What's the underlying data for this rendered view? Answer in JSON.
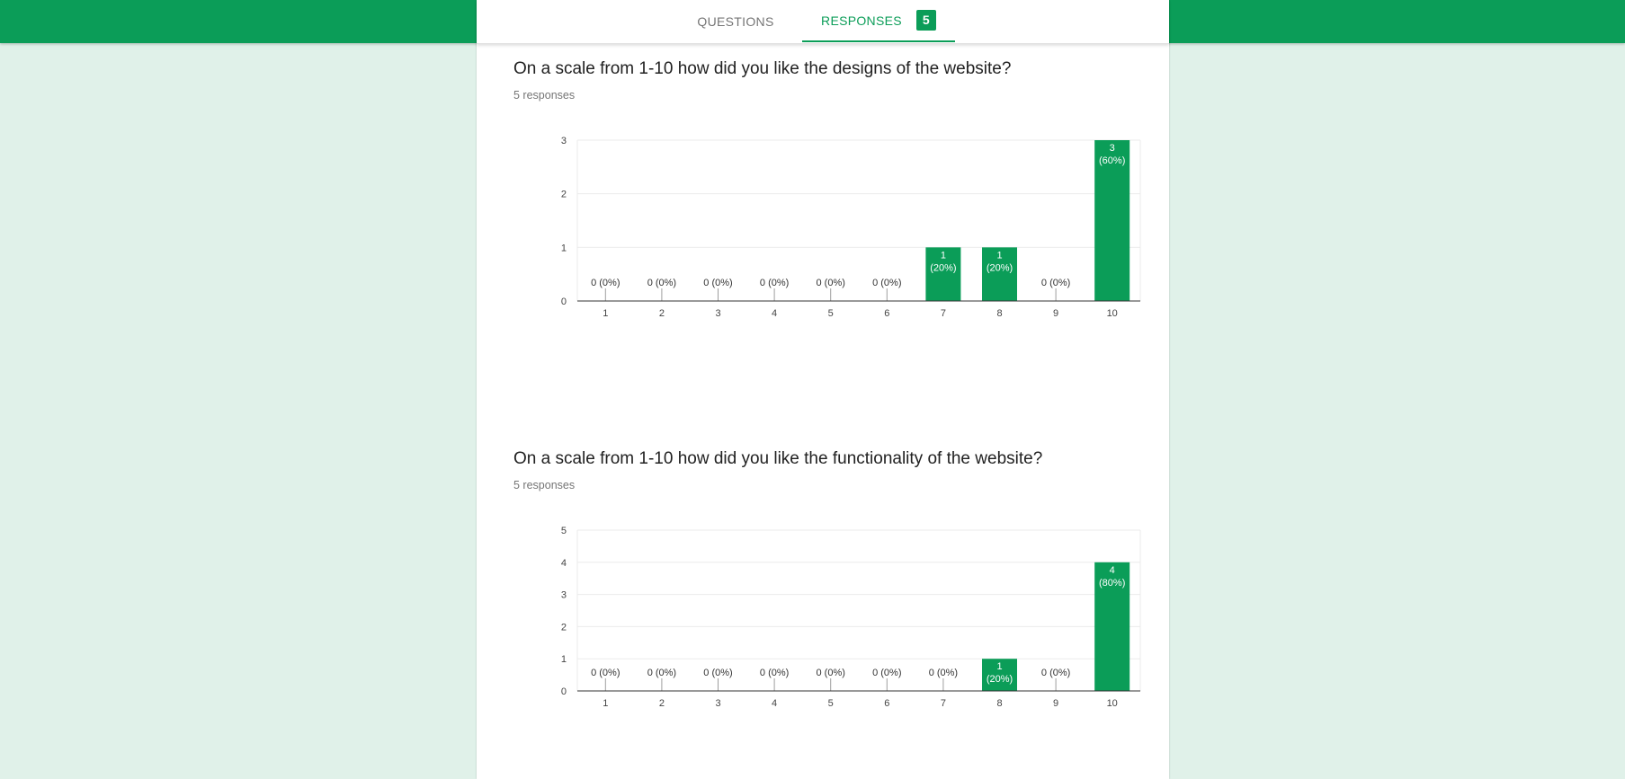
{
  "tabs": {
    "questions_label": "QUESTIONS",
    "responses_label": "RESPONSES",
    "responses_count": "5"
  },
  "colors": {
    "accent": "#0b9d58",
    "page_bg": "#e0f1e9"
  },
  "questions": [
    {
      "title": "On a scale from 1-10 how did you like the designs of the website?",
      "responses_text": "5 responses"
    },
    {
      "title": "On a scale from 1-10 how did you like the functionality of the website?",
      "responses_text": "5 responses"
    }
  ],
  "chart_data": [
    {
      "type": "bar",
      "categories": [
        "1",
        "2",
        "3",
        "4",
        "5",
        "6",
        "7",
        "8",
        "9",
        "10"
      ],
      "values": [
        0,
        0,
        0,
        0,
        0,
        0,
        1,
        1,
        0,
        3
      ],
      "data_labels": [
        "0 (0%)",
        "0 (0%)",
        "0 (0%)",
        "0 (0%)",
        "0 (0%)",
        "0 (0%)",
        "1\n(20%)",
        "1\n(20%)",
        "0 (0%)",
        "3\n(60%)"
      ],
      "ylim": [
        0,
        3
      ],
      "yticks": [
        0,
        1,
        2,
        3
      ],
      "grid": true,
      "color": "#0b9d58"
    },
    {
      "type": "bar",
      "categories": [
        "1",
        "2",
        "3",
        "4",
        "5",
        "6",
        "7",
        "8",
        "9",
        "10"
      ],
      "values": [
        0,
        0,
        0,
        0,
        0,
        0,
        0,
        1,
        0,
        4
      ],
      "data_labels": [
        "0 (0%)",
        "0 (0%)",
        "0 (0%)",
        "0 (0%)",
        "0 (0%)",
        "0 (0%)",
        "0 (0%)",
        "1\n(20%)",
        "0 (0%)",
        "4\n(80%)"
      ],
      "ylim": [
        0,
        5
      ],
      "yticks": [
        0,
        1,
        2,
        3,
        4,
        5
      ],
      "grid": true,
      "color": "#0b9d58"
    }
  ]
}
